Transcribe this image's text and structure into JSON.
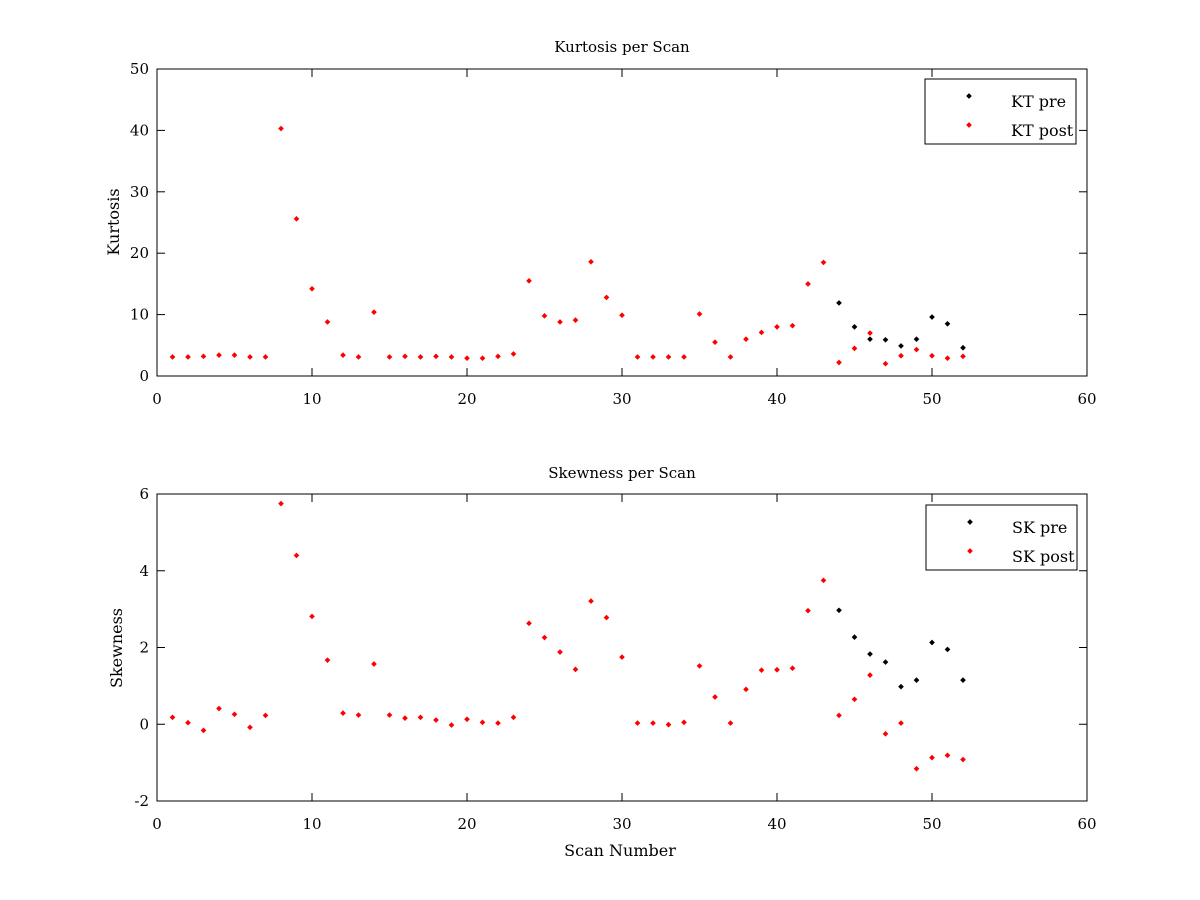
{
  "chart_data": [
    {
      "type": "scatter",
      "title": "Kurtosis per Scan",
      "xlabel": "",
      "ylabel": "Kurtosis",
      "xlim": [
        0,
        60
      ],
      "ylim": [
        0,
        50
      ],
      "xticks": [
        0,
        10,
        20,
        30,
        40,
        50,
        60
      ],
      "yticks": [
        0,
        10,
        20,
        30,
        40,
        50
      ],
      "grid": false,
      "legend": "top-right",
      "series": [
        {
          "name": "KT pre",
          "color": "#000000",
          "x": [
            44,
            45,
            46,
            47,
            48,
            49,
            50,
            51,
            52
          ],
          "y": [
            11.9,
            8.0,
            6.0,
            5.9,
            4.9,
            6.0,
            9.6,
            8.5,
            4.6
          ]
        },
        {
          "name": "KT post",
          "color": "#ff0000",
          "x": [
            1,
            2,
            3,
            4,
            5,
            6,
            7,
            8,
            9,
            10,
            11,
            12,
            13,
            14,
            15,
            16,
            17,
            18,
            19,
            20,
            21,
            22,
            23,
            24,
            25,
            26,
            27,
            28,
            29,
            30,
            31,
            32,
            33,
            34,
            35,
            36,
            37,
            38,
            39,
            40,
            41,
            42,
            43,
            44,
            45,
            46,
            47,
            48,
            49,
            50,
            51,
            52
          ],
          "y": [
            3.1,
            3.1,
            3.2,
            3.4,
            3.4,
            3.1,
            3.1,
            40.3,
            25.6,
            14.2,
            8.8,
            3.4,
            3.1,
            10.4,
            3.1,
            3.2,
            3.1,
            3.2,
            3.1,
            2.9,
            2.9,
            3.2,
            3.6,
            15.5,
            9.8,
            8.8,
            9.1,
            18.6,
            12.8,
            9.9,
            3.1,
            3.1,
            3.1,
            3.1,
            10.1,
            5.5,
            3.1,
            6.0,
            7.1,
            8.0,
            8.2,
            15.0,
            18.5,
            2.2,
            4.5,
            7.0,
            2.0,
            3.3,
            4.3,
            3.3,
            2.9,
            3.2
          ]
        }
      ]
    },
    {
      "type": "scatter",
      "title": "Skewness per Scan",
      "xlabel": "Scan Number",
      "ylabel": "Skewness",
      "xlim": [
        0,
        60
      ],
      "ylim": [
        -2,
        6
      ],
      "xticks": [
        0,
        10,
        20,
        30,
        40,
        50,
        60
      ],
      "yticks": [
        -2,
        0,
        2,
        4,
        6
      ],
      "grid": false,
      "legend": "top-right",
      "series": [
        {
          "name": "SK pre",
          "color": "#000000",
          "x": [
            44,
            45,
            46,
            47,
            48,
            49,
            50,
            51,
            52
          ],
          "y": [
            2.97,
            2.27,
            1.83,
            1.62,
            0.98,
            1.15,
            2.13,
            1.95,
            1.15
          ]
        },
        {
          "name": "SK post",
          "color": "#ff0000",
          "x": [
            1,
            2,
            3,
            4,
            5,
            6,
            7,
            8,
            9,
            10,
            11,
            12,
            13,
            14,
            15,
            16,
            17,
            18,
            19,
            20,
            21,
            22,
            23,
            24,
            25,
            26,
            27,
            28,
            29,
            30,
            31,
            32,
            33,
            34,
            35,
            36,
            37,
            38,
            39,
            40,
            41,
            42,
            43,
            44,
            45,
            46,
            47,
            48,
            49,
            50,
            51,
            52
          ],
          "y": [
            0.18,
            0.04,
            -0.16,
            0.41,
            0.26,
            -0.08,
            0.23,
            5.75,
            4.4,
            2.81,
            1.67,
            0.29,
            0.24,
            1.57,
            0.24,
            0.16,
            0.18,
            0.11,
            -0.02,
            0.13,
            0.05,
            0.03,
            0.18,
            2.63,
            2.26,
            1.88,
            1.43,
            3.21,
            2.78,
            1.75,
            0.03,
            0.03,
            -0.01,
            0.05,
            1.52,
            0.71,
            0.03,
            0.91,
            1.41,
            1.42,
            1.46,
            2.96,
            3.75,
            0.23,
            0.65,
            1.28,
            -0.25,
            0.03,
            -1.16,
            -0.87,
            -0.81,
            -0.92
          ]
        }
      ]
    }
  ]
}
